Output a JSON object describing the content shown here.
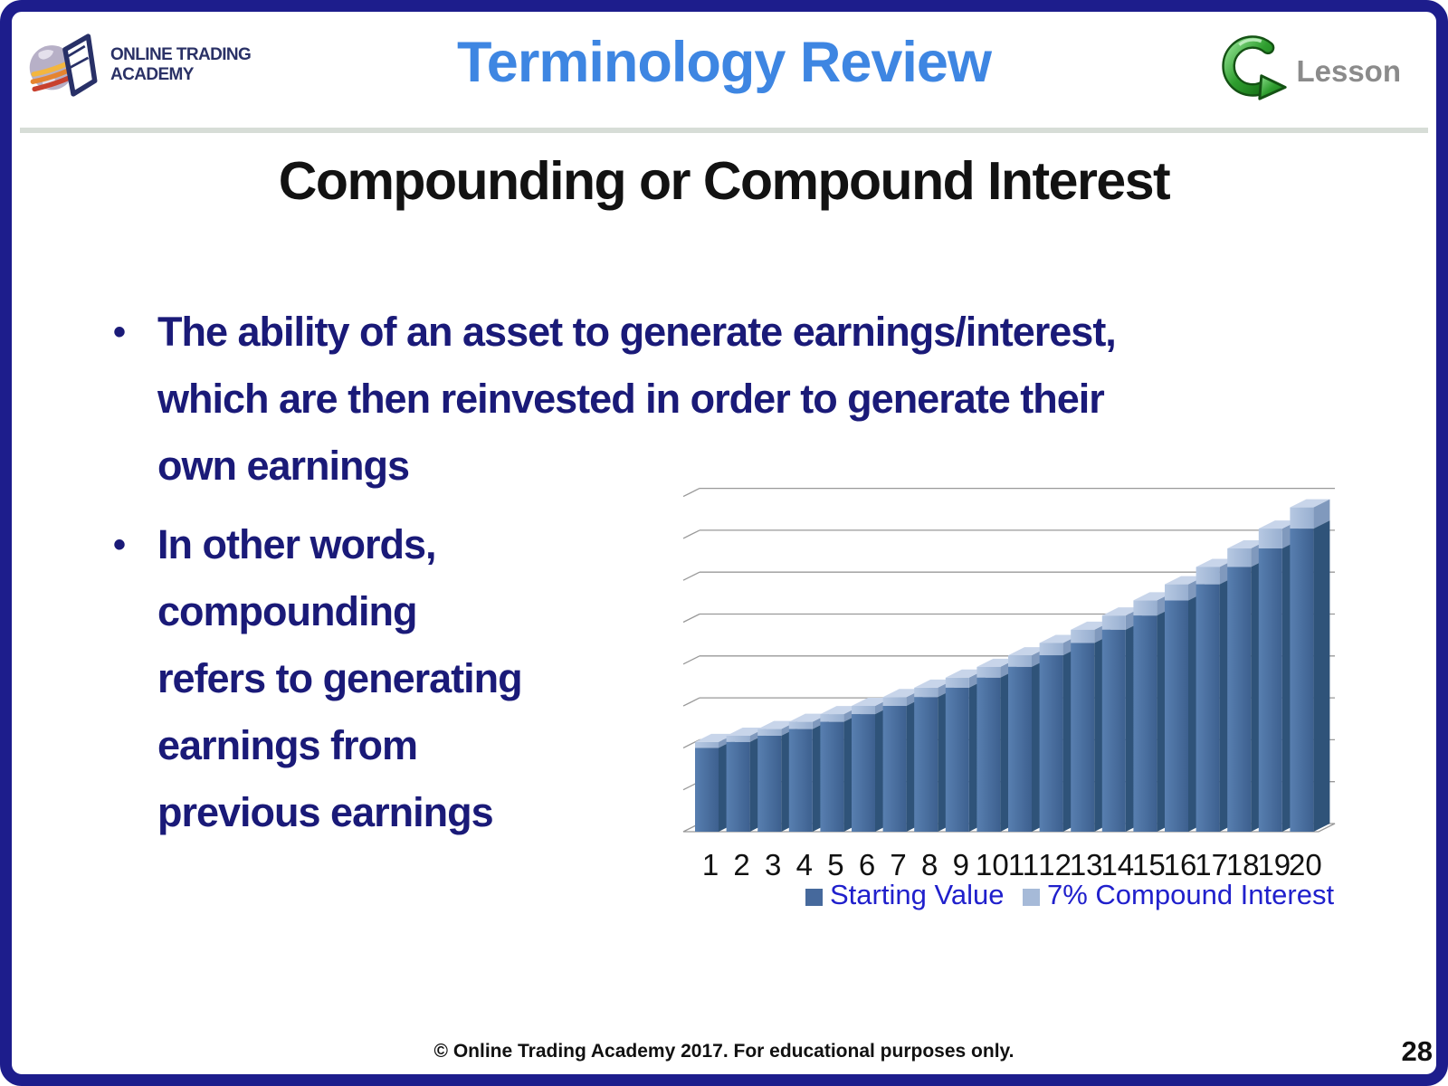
{
  "slide": {
    "footer": "© Online Trading Academy 2017. For educational purposes only.",
    "page_number": "28",
    "colors": {
      "border": "#1d1d8c",
      "title": "#3e86e2",
      "heading": "#121212",
      "body_text": "#1a1a78",
      "lesson_label": "#8b8b8b",
      "separator": "#d7ddd7"
    }
  },
  "header": {
    "logo": {
      "icon": "globe-book-logo",
      "line1": "ONLINE TRADING",
      "line2": "ACADEMY"
    },
    "title": "Terminology Review",
    "lesson": {
      "icon": "green-loop-arrow",
      "label": "Lesson"
    }
  },
  "main": {
    "heading": "Compounding or Compound Interest",
    "bullets": [
      {
        "lines": [
          "The ability of an asset to generate earnings/interest,",
          "which are then reinvested in order to generate their",
          "own earnings"
        ]
      },
      {
        "lines": [
          "In other words,",
          "compounding",
          "refers to generating",
          "earnings from",
          "previous earnings"
        ]
      }
    ]
  },
  "chart_data": {
    "type": "bar",
    "stacked": true,
    "style": "3d",
    "title": "",
    "xlabel": "",
    "ylabel": "",
    "categories": [
      1,
      2,
      3,
      4,
      5,
      6,
      7,
      8,
      9,
      10,
      11,
      12,
      13,
      14,
      15,
      16,
      17,
      18,
      19,
      20
    ],
    "series": [
      {
        "name": "Starting Value",
        "color": "#46699c",
        "side_color": "#2f5379",
        "values": [
          1.0,
          1.07,
          1.145,
          1.225,
          1.311,
          1.403,
          1.501,
          1.606,
          1.718,
          1.838,
          1.967,
          2.105,
          2.252,
          2.41,
          2.579,
          2.759,
          2.952,
          3.159,
          3.38,
          3.617
        ]
      },
      {
        "name": "7% Compound Interest",
        "color": "#a6bad8",
        "side_color": "#8099bd",
        "top_color": "#c8d5ea",
        "values": [
          0.07,
          0.075,
          0.08,
          0.086,
          0.092,
          0.098,
          0.105,
          0.112,
          0.12,
          0.129,
          0.138,
          0.147,
          0.158,
          0.169,
          0.181,
          0.193,
          0.207,
          0.221,
          0.237,
          0.253
        ]
      }
    ],
    "ylim": [
      0,
      4
    ],
    "gridline_step": 0.5,
    "y_axis_labels_visible": false,
    "grid": true,
    "legend_position": "bottom",
    "legend_text_color": "#2020cc"
  }
}
